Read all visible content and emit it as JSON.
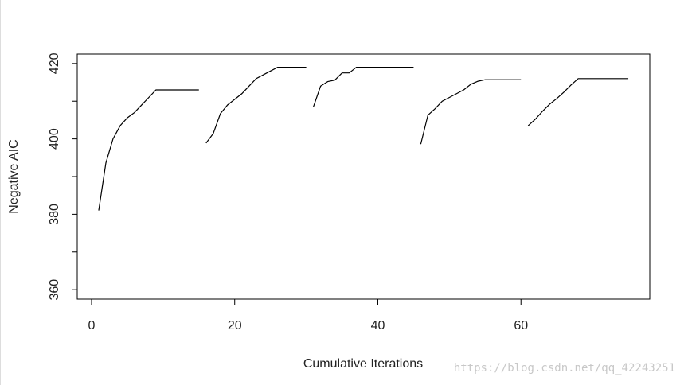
{
  "chart_data": {
    "type": "line",
    "xlabel": "Cumulative Iterations",
    "ylabel": "Negative AIC",
    "watermark": "https://blog.csdn.net/qq_42243251",
    "xlim": [
      -2,
      78
    ],
    "ylim": [
      357.5,
      422.5
    ],
    "xticks": [
      0,
      20,
      40,
      60
    ],
    "yticks": [
      360,
      380,
      400,
      420
    ],
    "yminor_ticks": [
      370,
      390,
      410
    ],
    "series": [
      {
        "color": "#000000",
        "x": [
          1,
          2,
          3,
          4,
          5,
          6,
          7,
          8,
          9,
          10,
          11,
          12,
          13,
          14,
          15
        ],
        "values": [
          381,
          393.6,
          400,
          403.5,
          405.6,
          407,
          409,
          411,
          413,
          413,
          413,
          413,
          413,
          413,
          413
        ]
      },
      {
        "color": "#000000",
        "x": [
          16,
          17,
          18,
          19,
          20,
          21,
          22,
          23,
          24,
          25,
          26,
          27,
          28,
          29,
          30
        ],
        "values": [
          398.9,
          401.4,
          406.7,
          409,
          410.5,
          412,
          414,
          416,
          417,
          418,
          419,
          419,
          419,
          419,
          419
        ]
      },
      {
        "color": "#000000",
        "x": [
          31,
          32,
          33,
          34,
          35,
          36,
          37,
          38,
          39,
          40,
          41,
          42,
          43,
          44,
          45
        ],
        "values": [
          408.5,
          414,
          415.2,
          415.6,
          417.5,
          417.5,
          419,
          419,
          419,
          419,
          419,
          419,
          419,
          419,
          419
        ]
      },
      {
        "color": "#000000",
        "x": [
          46,
          47,
          48,
          49,
          50,
          51,
          52,
          53,
          54,
          55,
          56,
          57,
          58,
          59,
          60
        ],
        "values": [
          398.6,
          406.3,
          408,
          410,
          411,
          412,
          413,
          414.5,
          415.3,
          415.7,
          415.7,
          415.7,
          415.7,
          415.7,
          415.7
        ]
      },
      {
        "color": "#000000",
        "x": [
          61,
          62,
          63,
          64,
          65,
          66,
          67,
          68,
          69,
          70,
          71,
          72,
          73,
          74,
          75
        ],
        "values": [
          403.5,
          405.2,
          407.3,
          409.2,
          410.7,
          412.4,
          414.3,
          416,
          416,
          416,
          416,
          416,
          416,
          416,
          416
        ]
      }
    ]
  }
}
